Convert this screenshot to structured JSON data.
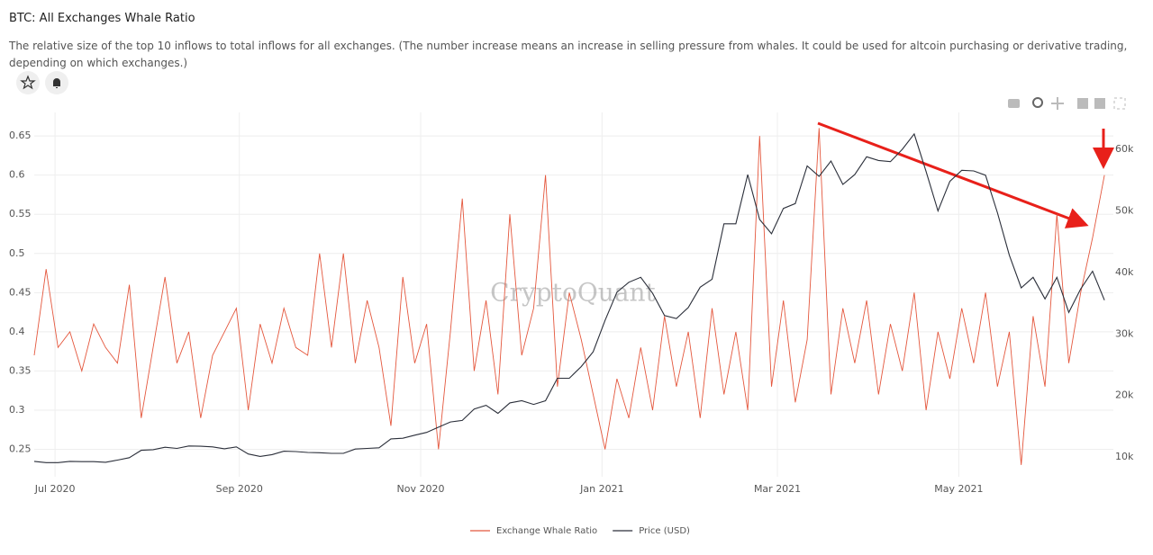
{
  "chart_data": {
    "type": "line",
    "title": "BTC: All Exchanges Whale Ratio",
    "subtitle": "The relative size of the top 10 inflows to total inflows for all exchanges. (The number increase means an increase in selling pressure from whales. It could be used for altcoin purchasing or derivative trading, depending on which exchanges.)",
    "watermark": "CryptoQuant",
    "x": [
      "2020-06-24",
      "2020-06-28",
      "2020-07-02",
      "2020-07-06",
      "2020-07-10",
      "2020-07-14",
      "2020-07-18",
      "2020-07-22",
      "2020-07-26",
      "2020-07-30",
      "2020-08-03",
      "2020-08-07",
      "2020-08-11",
      "2020-08-15",
      "2020-08-19",
      "2020-08-23",
      "2020-08-27",
      "2020-08-31",
      "2020-09-04",
      "2020-09-08",
      "2020-09-12",
      "2020-09-16",
      "2020-09-20",
      "2020-09-24",
      "2020-09-28",
      "2020-10-02",
      "2020-10-06",
      "2020-10-10",
      "2020-10-14",
      "2020-10-18",
      "2020-10-22",
      "2020-10-26",
      "2020-10-30",
      "2020-11-03",
      "2020-11-07",
      "2020-11-11",
      "2020-11-15",
      "2020-11-19",
      "2020-11-23",
      "2020-11-27",
      "2020-12-01",
      "2020-12-05",
      "2020-12-09",
      "2020-12-13",
      "2020-12-17",
      "2020-12-21",
      "2020-12-25",
      "2020-12-29",
      "2021-01-02",
      "2021-01-06",
      "2021-01-10",
      "2021-01-14",
      "2021-01-18",
      "2021-01-22",
      "2021-01-26",
      "2021-01-30",
      "2021-02-03",
      "2021-02-07",
      "2021-02-11",
      "2021-02-15",
      "2021-02-19",
      "2021-02-23",
      "2021-02-27",
      "2021-03-03",
      "2021-03-07",
      "2021-03-11",
      "2021-03-15",
      "2021-03-19",
      "2021-03-23",
      "2021-03-27",
      "2021-03-31",
      "2021-04-04",
      "2021-04-08",
      "2021-04-12",
      "2021-04-16",
      "2021-04-20",
      "2021-04-24",
      "2021-04-28",
      "2021-05-02",
      "2021-05-06",
      "2021-05-10",
      "2021-05-14",
      "2021-05-18",
      "2021-05-22",
      "2021-05-26",
      "2021-05-30",
      "2021-06-03",
      "2021-06-07",
      "2021-06-11",
      "2021-06-15",
      "2021-06-19"
    ],
    "series": [
      {
        "name": "Exchange Whale Ratio",
        "color": "#e4573d",
        "values": [
          0.37,
          0.48,
          0.38,
          0.4,
          0.35,
          0.41,
          0.38,
          0.36,
          0.46,
          0.29,
          0.38,
          0.47,
          0.36,
          0.4,
          0.29,
          0.37,
          0.4,
          0.43,
          0.3,
          0.41,
          0.36,
          0.43,
          0.38,
          0.37,
          0.5,
          0.38,
          0.5,
          0.36,
          0.44,
          0.38,
          0.28,
          0.47,
          0.36,
          0.41,
          0.25,
          0.4,
          0.57,
          0.35,
          0.44,
          0.32,
          0.55,
          0.37,
          0.43,
          0.6,
          0.33,
          0.45,
          0.39,
          0.32,
          0.25,
          0.34,
          0.29,
          0.38,
          0.3,
          0.42,
          0.33,
          0.4,
          0.29,
          0.43,
          0.32,
          0.4,
          0.3,
          0.65,
          0.33,
          0.44,
          0.31,
          0.39,
          0.66,
          0.32,
          0.43,
          0.36,
          0.44,
          0.32,
          0.41,
          0.35,
          0.45,
          0.3,
          0.4,
          0.34,
          0.43,
          0.36,
          0.45,
          0.33,
          0.4,
          0.23,
          0.42,
          0.33,
          0.55,
          0.36,
          0.45,
          0.52,
          0.6
        ]
      },
      {
        "name": "Price (USD)",
        "color": "#2b2f3a",
        "axis": "y2",
        "values": [
          9300,
          9100,
          9100,
          9300,
          9250,
          9250,
          9150,
          9500,
          9900,
          11100,
          11200,
          11600,
          11400,
          11800,
          11750,
          11650,
          11350,
          11650,
          10500,
          10100,
          10400,
          10950,
          10900,
          10750,
          10700,
          10600,
          10600,
          11300,
          11400,
          11500,
          12950,
          13050,
          13550,
          14000,
          14850,
          15700,
          15950,
          17800,
          18400,
          17100,
          18800,
          19150,
          18550,
          19150,
          22800,
          22800,
          24700,
          27100,
          32200,
          36800,
          38400,
          39200,
          36600,
          33000,
          32500,
          34300,
          37600,
          38900,
          47900,
          47900,
          55900,
          48600,
          46300,
          50400,
          51200,
          57300,
          55600,
          58100,
          54300,
          55900,
          58800,
          58200,
          58000,
          60000,
          62500,
          56400,
          50000,
          54800,
          56600,
          56500,
          55800,
          49700,
          42800,
          37500,
          39200,
          35700,
          39200,
          33500,
          37300,
          40200,
          35500
        ]
      }
    ],
    "xlim": [
      "2020-06-24",
      "2021-06-22"
    ],
    "xticks": [
      {
        "value": "2020-07-01",
        "label": "Jul 2020"
      },
      {
        "value": "2020-09-01",
        "label": "Sep 2020"
      },
      {
        "value": "2020-11-01",
        "label": "Nov 2020"
      },
      {
        "value": "2021-01-01",
        "label": "Jan 2021"
      },
      {
        "value": "2021-03-01",
        "label": "Mar 2021"
      },
      {
        "value": "2021-05-01",
        "label": "May 2021"
      }
    ],
    "ylim": [
      0.215,
      0.68
    ],
    "yticks": [
      0.25,
      0.3,
      0.35,
      0.4,
      0.45,
      0.5,
      0.55,
      0.6,
      0.65
    ],
    "y2lim": [
      6800,
      66000
    ],
    "y2ticks": [
      {
        "value": 10000,
        "label": "10k"
      },
      {
        "value": 20000,
        "label": "20k"
      },
      {
        "value": 30000,
        "label": "30k"
      },
      {
        "value": 40000,
        "label": "40k"
      },
      {
        "value": 50000,
        "label": "50k"
      },
      {
        "value": 60000,
        "label": "60k"
      }
    ],
    "grid": true,
    "legend": "bottom"
  }
}
